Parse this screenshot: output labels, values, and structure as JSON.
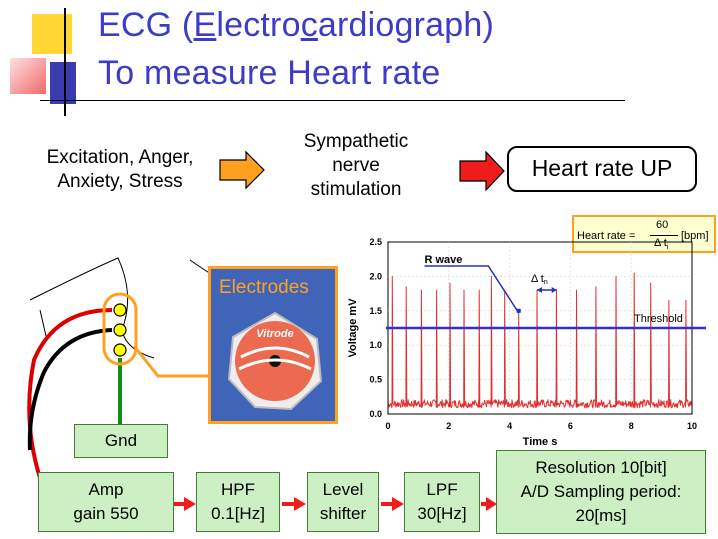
{
  "title": {
    "line1": {
      "p1": "ECG (",
      "p2": "E",
      "p3": "lectro",
      "p4": "c",
      "p5": "ardio",
      "p6": "g",
      "p7": "raph)"
    },
    "line2": "To measure Heart rate"
  },
  "flow": {
    "cause_line1": "Excitation, Anger,",
    "cause_line2": "Anxiety, Stress",
    "nerve_line1": "Sympathetic",
    "nerve_line2": "nerve",
    "nerve_line3": "stimulation",
    "result": "Heart rate UP"
  },
  "electrodes_label": "Electrodes",
  "electrode_brand": "Vitrode",
  "gnd_label": "Gnd",
  "pipeline": [
    {
      "line1": "Amp",
      "line2": "gain 550"
    },
    {
      "line1": "HPF",
      "line2": "0.1[Hz]"
    },
    {
      "line1": "Level",
      "line2": "shifter"
    },
    {
      "line1": "LPF",
      "line2": "30[Hz]"
    }
  ],
  "adc": {
    "line1": "Resolution 10[bit]",
    "line2": "A/D Sampling period:",
    "line3": "20[ms]"
  },
  "formula": {
    "lhs": "Heart rate =",
    "num": "60",
    "den": "Δ t",
    "den_sub": "i",
    "unit": "[bpm]"
  },
  "chart_data": {
    "type": "line",
    "xlabel": "Time  s",
    "ylabel": "Voltage  mV",
    "xlim": [
      0,
      10
    ],
    "ylim": [
      0,
      2.5
    ],
    "xticks": [
      "0",
      "2",
      "4",
      "6",
      "8",
      "10"
    ],
    "yticks": [
      "0.0",
      "0.5",
      "1.0",
      "1.5",
      "2.0",
      "2.5"
    ],
    "threshold": {
      "label": "Threshold",
      "value": 1.25
    },
    "baseline_mv": 0.15,
    "r_wave_label": "R wave",
    "delta_label": "Δ t",
    "delta_sub": "n",
    "peaks": [
      {
        "t": 0.15,
        "v": 2.0
      },
      {
        "t": 0.6,
        "v": 1.85
      },
      {
        "t": 1.1,
        "v": 1.8
      },
      {
        "t": 1.6,
        "v": 1.8
      },
      {
        "t": 2.05,
        "v": 1.9
      },
      {
        "t": 2.5,
        "v": 1.8
      },
      {
        "t": 3.0,
        "v": 1.8
      },
      {
        "t": 3.4,
        "v": 2.0
      },
      {
        "t": 3.85,
        "v": 1.8
      },
      {
        "t": 4.3,
        "v": 1.5
      },
      {
        "t": 4.9,
        "v": 1.8
      },
      {
        "t": 5.55,
        "v": 1.8
      },
      {
        "t": 6.2,
        "v": 1.8
      },
      {
        "t": 6.85,
        "v": 1.85
      },
      {
        "t": 7.5,
        "v": 2.0
      },
      {
        "t": 8.1,
        "v": 2.05
      },
      {
        "t": 8.65,
        "v": 1.9
      },
      {
        "t": 9.25,
        "v": 1.65
      },
      {
        "t": 9.8,
        "v": 1.65
      }
    ],
    "colors": {
      "signal": "#e03030",
      "threshold": "#3030d0",
      "annotation": "#2030c0"
    }
  }
}
